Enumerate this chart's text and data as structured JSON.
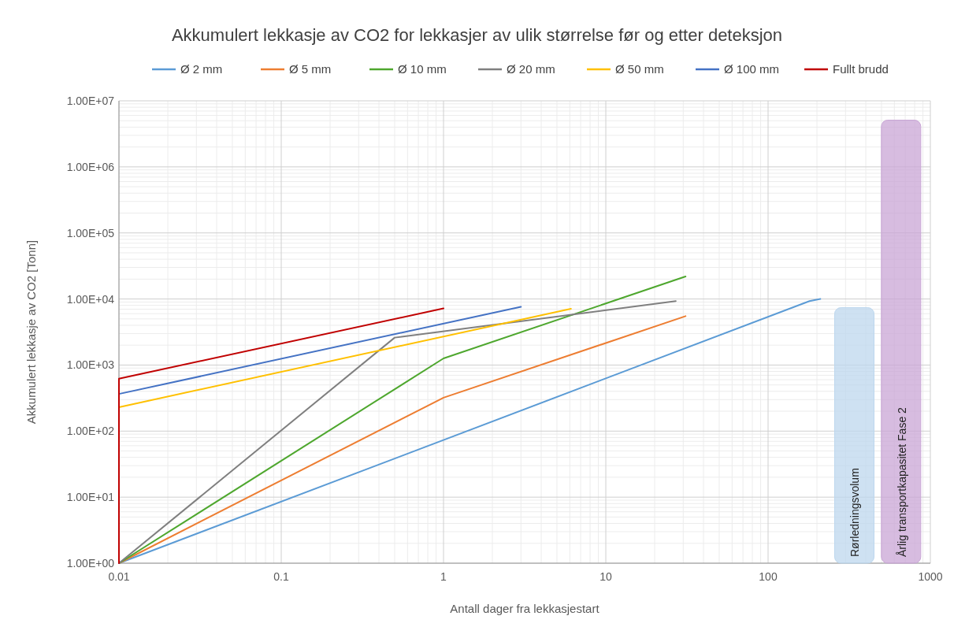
{
  "chart_data": {
    "type": "line",
    "title": "Akkumulert lekkasje av CO2 for lekkasjer av ulik størrelse før og etter deteksjon",
    "xlabel": "Antall dager fra lekkasjestart",
    "ylabel": "Akkumulert lekkasje av CO2 [Tonn]",
    "log": "xy",
    "grid": true,
    "legend": "top",
    "line_style": "solid",
    "xlim": [
      0.01,
      1000
    ],
    "xticks": [
      0.01,
      0.1,
      1,
      10,
      100,
      1000
    ],
    "ylim": [
      1,
      10000000
    ],
    "yticks": [
      {
        "value": 1,
        "label": "1.00E+00"
      },
      {
        "value": 10,
        "label": "1.00E+01"
      },
      {
        "value": 100,
        "label": "1.00E+02"
      },
      {
        "value": 1000,
        "label": "1.00E+03"
      },
      {
        "value": 10000,
        "label": "1.00E+04"
      },
      {
        "value": 100000,
        "label": "1.00E+05"
      },
      {
        "value": 1000000,
        "label": "1.00E+06"
      },
      {
        "value": 10000000,
        "label": "1.00E+07"
      }
    ],
    "series": [
      {
        "name": "Ø 2 mm",
        "color": "#5b9bd5",
        "x": [
          0.01,
          180,
          210
        ],
        "values": [
          1,
          9300,
          10000
        ]
      },
      {
        "name": "Ø 5 mm",
        "color": "#ed7d31",
        "x": [
          0.01,
          1,
          31
        ],
        "values": [
          1,
          320,
          5500
        ]
      },
      {
        "name": "Ø 10 mm",
        "color": "#4ea72e",
        "x": [
          0.01,
          1,
          31
        ],
        "values": [
          1,
          1260,
          21900
        ]
      },
      {
        "name": "Ø 20 mm",
        "color": "#7f7f7f",
        "x": [
          0.01,
          0.5,
          27
        ],
        "values": [
          1,
          2600,
          9300
        ]
      },
      {
        "name": "Ø 50 mm",
        "color": "#ffc000",
        "x": [
          0.01,
          6.1
        ],
        "values": [
          230,
          7100
        ]
      },
      {
        "name": "Ø 100 mm",
        "color": "#4472c4",
        "x": [
          0.01,
          0.01,
          3
        ],
        "values": [
          1,
          365,
          7600
        ]
      },
      {
        "name": "Fullt brudd",
        "color": "#c00000",
        "x": [
          0.01,
          0.01,
          1
        ],
        "values": [
          1,
          620,
          7200
        ]
      },
      {
        "name": "Rørledningsvolum",
        "type": "bar",
        "color": "#bdd7ee",
        "x": [
          340
        ],
        "values": [
          7400
        ]
      },
      {
        "name": "Årlig transportkapasitet Fase 2",
        "type": "bar",
        "color": "#c9a6d6",
        "x": [
          660
        ],
        "values": [
          5100000
        ]
      }
    ]
  }
}
